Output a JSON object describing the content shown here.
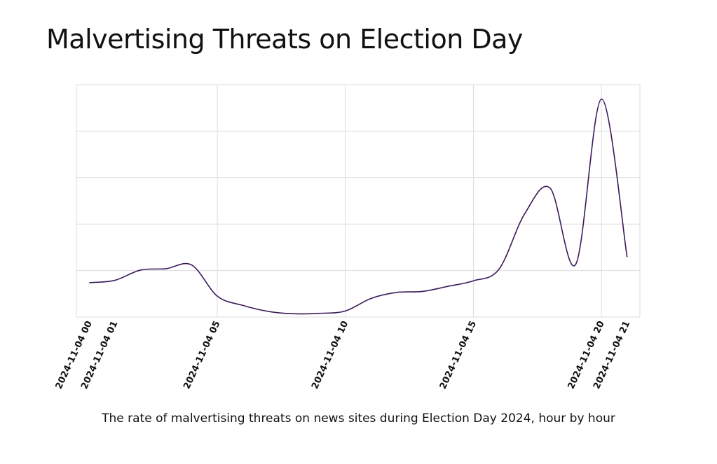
{
  "chart_data": {
    "type": "line",
    "title": "Malvertising Threats on Election Day",
    "caption": "The rate of malvertising threats on news sites during Election Day 2024, hour by hour",
    "xlabel": "",
    "ylabel": "",
    "x_tick_labels": [
      "2024-11-04 00",
      "2024-11-04 01",
      "2024-11-04 05",
      "2024-11-04 10",
      "2024-11-04 15",
      "2024-11-04 20",
      "2024-11-04 21"
    ],
    "x_tick_hours": [
      0,
      1,
      5,
      10,
      15,
      20,
      21
    ],
    "xlim": [
      -0.5,
      21.5
    ],
    "ylim": [
      0,
      5
    ],
    "y_gridlines": [
      1,
      2,
      3,
      4,
      5
    ],
    "grid": true,
    "y_tick_labels_shown": false,
    "series": [
      {
        "color": "#3b1a5a",
        "x": [
          0,
          1,
          2,
          3,
          4,
          5,
          6,
          7,
          8,
          9,
          10,
          11,
          12,
          13,
          14,
          15,
          16,
          17,
          18,
          19,
          20,
          21
        ],
        "values": [
          0.74,
          0.79,
          1.01,
          1.04,
          1.12,
          0.45,
          0.25,
          0.12,
          0.07,
          0.08,
          0.13,
          0.4,
          0.53,
          0.55,
          0.66,
          0.78,
          1.03,
          2.22,
          2.77,
          1.14,
          4.69,
          1.29
        ]
      }
    ]
  }
}
